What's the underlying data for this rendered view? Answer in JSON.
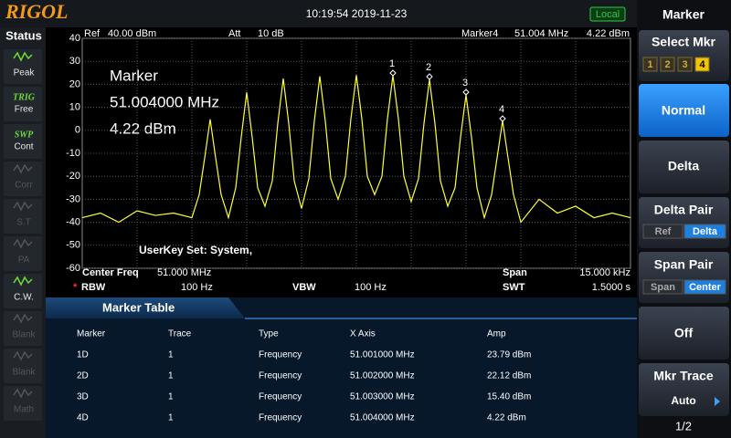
{
  "header": {
    "logo": "RIGOL",
    "datetime": "10:19:54 2019-11-23",
    "mode": "Local"
  },
  "status": {
    "title": "Status",
    "items": [
      [
        "Peak"
      ],
      [
        "TRIG",
        "Free"
      ],
      [
        "SWP",
        "Cont"
      ],
      [
        "Corr"
      ],
      [
        "S.T"
      ],
      [
        "PA"
      ],
      [
        "C.W."
      ],
      [
        "Blank"
      ],
      [
        "Blank"
      ],
      [
        "Math"
      ]
    ]
  },
  "info": {
    "ref": "Ref",
    "ref_value": "40.00 dBm",
    "att": "Att",
    "att_value": "10 dB",
    "marker": "Marker4",
    "marker_freq": "51.004 MHz",
    "marker_amp": "4.22 dBm"
  },
  "marker_readout": [
    "Marker",
    "51.004000 MHz",
    "4.22 dBm"
  ],
  "userkey": "UserKey Set:   System,",
  "spectrum": {
    "type": "line",
    "color": "#ffff33",
    "grid": true,
    "ylim": [
      -60,
      40
    ],
    "yticks": [
      40,
      30,
      20,
      10,
      0,
      -10,
      -20,
      -30,
      -40,
      -50,
      -60
    ],
    "xlim": [
      50.9925,
      51.0075
    ],
    "marker_labels": [
      "1",
      "2",
      "3",
      "4"
    ],
    "x": [
      50.9925,
      50.993,
      50.9935,
      50.994,
      50.9945,
      50.995,
      50.9955,
      50.9957,
      50.99585,
      50.996,
      50.99615,
      50.9963,
      50.9965,
      50.9967,
      50.99685,
      50.997,
      50.99715,
      50.9973,
      50.9975,
      50.9977,
      50.99785,
      50.998,
      50.99815,
      50.9983,
      50.9985,
      50.9987,
      50.99885,
      50.999,
      50.99915,
      50.9993,
      50.9995,
      50.9997,
      50.99985,
      51.0,
      51.00015,
      51.0003,
      51.0005,
      51.0007,
      51.00085,
      51.001,
      51.00115,
      51.0013,
      51.0015,
      51.0017,
      51.00185,
      51.002,
      51.00215,
      51.0023,
      51.0025,
      51.0027,
      51.00285,
      51.003,
      51.00315,
      51.0033,
      51.0035,
      51.0037,
      51.00385,
      51.004,
      51.00415,
      51.0043,
      51.0045,
      51.005,
      51.0055,
      51.006,
      51.0065,
      51.007,
      51.0075
    ],
    "values": [
      -38,
      -36,
      -40,
      -35,
      -37,
      -36,
      -38,
      -28,
      -12,
      4.8,
      -12,
      -28,
      -38,
      -25,
      -3,
      16.5,
      -3,
      -25,
      -33,
      -22,
      3,
      22.5,
      3,
      -22,
      -34,
      -21,
      4,
      23.5,
      4,
      -21,
      -30,
      -20,
      5,
      24,
      5,
      -20,
      -28,
      -20,
      5,
      23.79,
      5,
      -20,
      -31,
      -21,
      3,
      22.12,
      3,
      -22,
      -33,
      -25,
      -3,
      15.4,
      -3,
      -25,
      -38,
      -28,
      -12,
      4.22,
      -12,
      -28,
      -40,
      -30,
      -36,
      -33,
      -38,
      -36,
      -38
    ]
  },
  "footer": {
    "center_label": "Center Freq",
    "center_value": "51.000 MHz",
    "span_label": "Span",
    "span_value": "15.000 kHz",
    "rbw_star": "*",
    "rbw_label": "RBW",
    "rbw_value": "100 Hz",
    "vbw_label": "VBW",
    "vbw_value": "100 Hz",
    "swt_label": "SWT",
    "swt_value": "1.5000 s"
  },
  "marker_table": {
    "title": "Marker Table",
    "columns": [
      "Marker",
      "Trace",
      "Type",
      "X Axis",
      "Amp"
    ],
    "rows": [
      [
        "1D",
        "1",
        "Frequency",
        "51.001000 MHz",
        "23.79 dBm"
      ],
      [
        "2D",
        "1",
        "Frequency",
        "51.002000 MHz",
        "22.12 dBm"
      ],
      [
        "3D",
        "1",
        "Frequency",
        "51.003000 MHz",
        "15.40 dBm"
      ],
      [
        "4D",
        "1",
        "Frequency",
        "51.004000 MHz",
        "4.22 dBm"
      ]
    ]
  },
  "menu": {
    "title": "Marker",
    "select": "Select Mkr",
    "select_options": [
      "1",
      "2",
      "3",
      "4"
    ],
    "normal": "Normal",
    "delta": "Delta",
    "delta_pair": "Delta Pair",
    "delta_pair_options": [
      "Ref",
      "Delta"
    ],
    "span_pair": "Span Pair",
    "span_pair_options": [
      "Span",
      "Center"
    ],
    "off": "Off",
    "mkr_trace": "Mkr Trace",
    "mkr_trace_value": "Auto",
    "page": "1/2"
  }
}
